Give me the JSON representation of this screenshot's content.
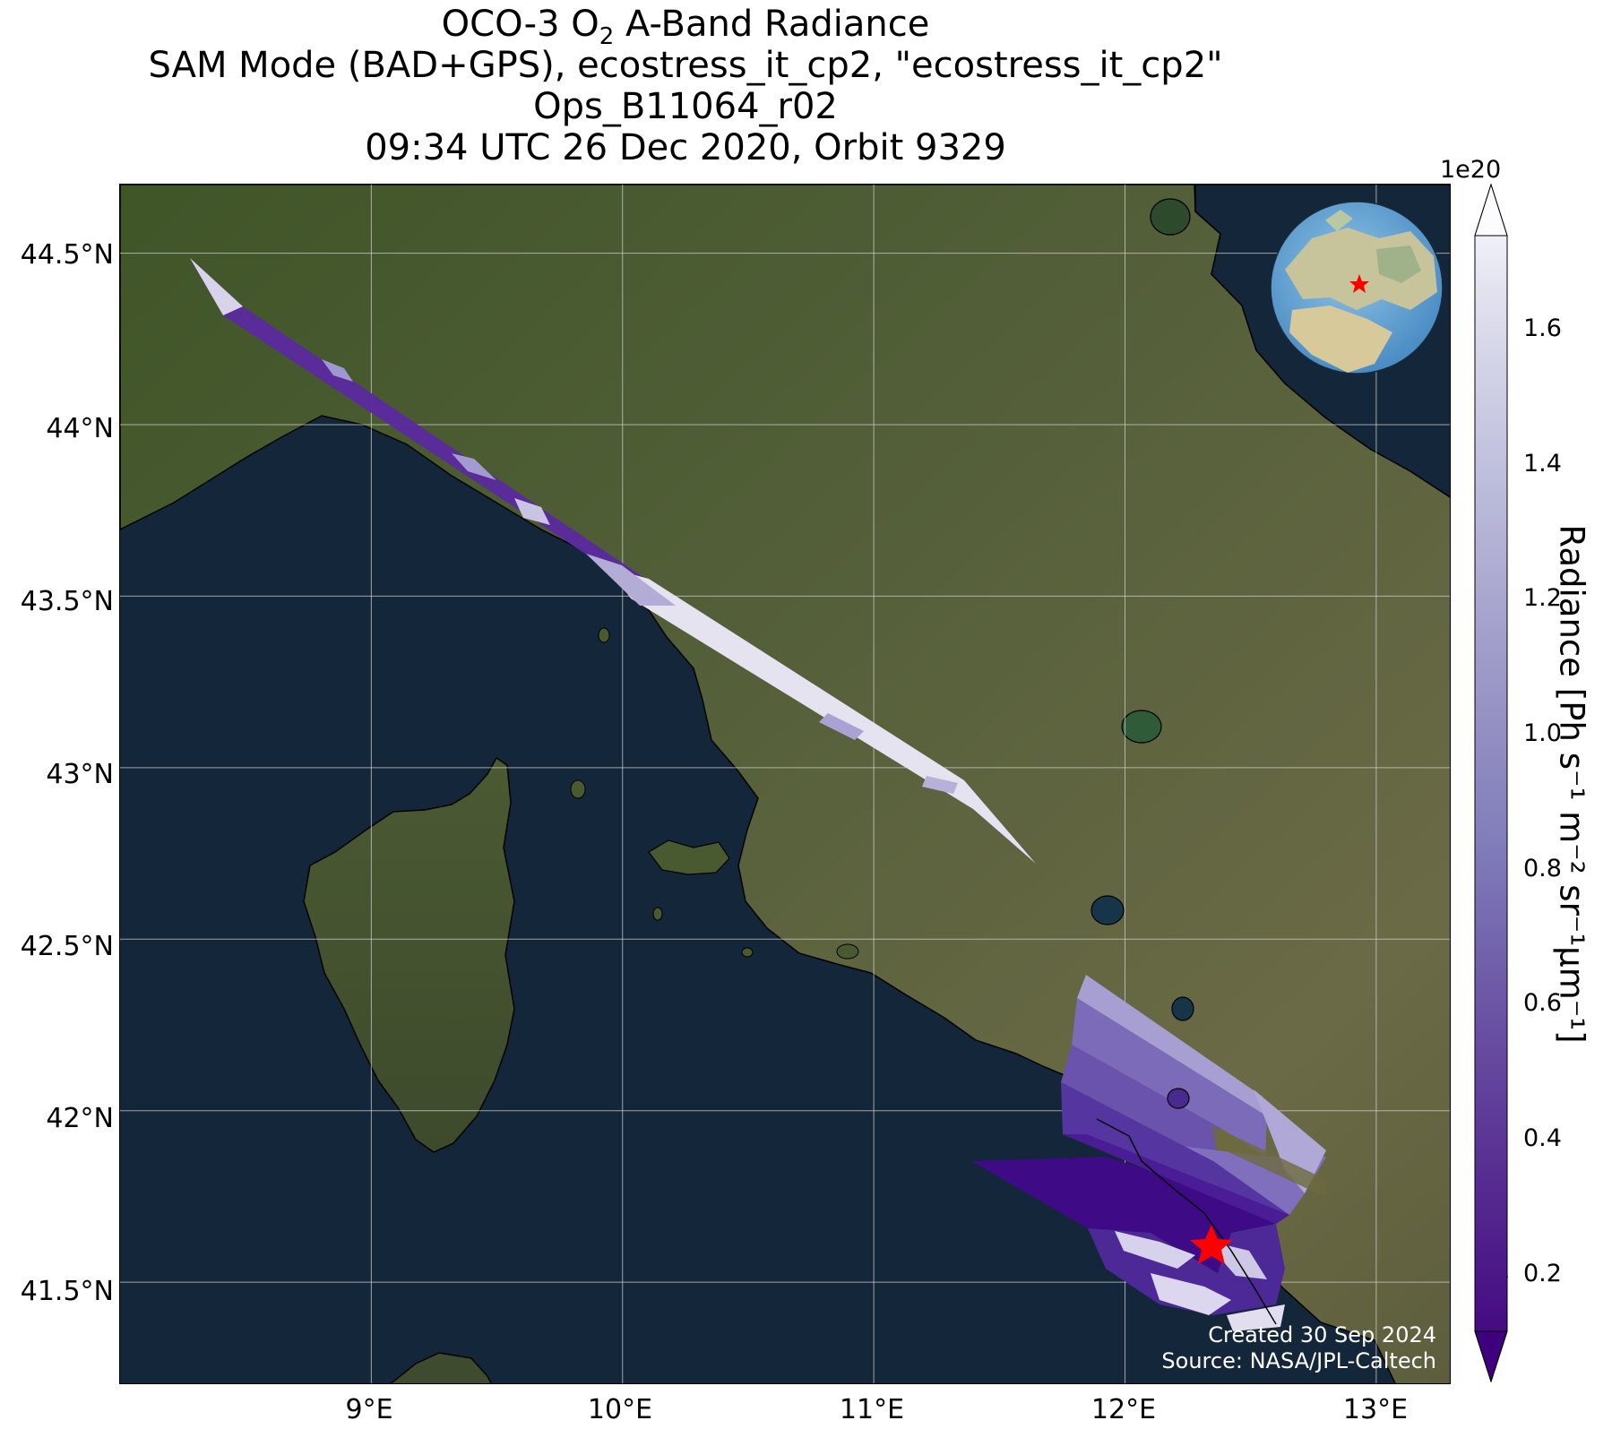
{
  "title": {
    "line1_pre": "OCO-3 O",
    "line1_sub": "2",
    "line1_post": " A-Band Radiance",
    "line2": "SAM Mode (BAD+GPS), ecostress_it_cp2, \"ecostress_it_cp2\"",
    "line3": "Ops_B11064_r02",
    "line4": "09:34 UTC 26 Dec 2020, Orbit 9329"
  },
  "axes": {
    "lon_ticks": [
      "9°E",
      "10°E",
      "11°E",
      "12°E",
      "13°E"
    ],
    "lat_ticks": [
      "44.5°N",
      "44°N",
      "43.5°N",
      "43°N",
      "42.5°N",
      "42°N",
      "41.5°N"
    ],
    "lon_values": [
      9,
      10,
      11,
      12,
      13
    ],
    "lat_values": [
      44.5,
      44,
      43.5,
      43,
      42.5,
      42,
      41.5
    ],
    "lon_range": [
      8,
      13.3
    ],
    "lat_range": [
      41.2,
      44.7
    ],
    "grid": true
  },
  "colorbar": {
    "label": "Radiance [Ph s⁻¹ m⁻² sr⁻¹μm⁻¹]",
    "exponent": "1e20",
    "ticks": [
      "0.2",
      "0.4",
      "0.6",
      "0.8",
      "1.0",
      "1.2",
      "1.4",
      "1.6"
    ],
    "tick_values": [
      0.2,
      0.4,
      0.6,
      0.8,
      1.0,
      1.2,
      1.4,
      1.6
    ],
    "range": [
      0.1,
      1.73
    ],
    "colormap": "Purples_r",
    "color_low": "#3f007d",
    "color_high": "#fcfbfd",
    "extend": "both"
  },
  "target_marker": {
    "lon": 12.36,
    "lat": 41.7,
    "color": "#ff0000",
    "shape": "star"
  },
  "inset_globe": {
    "icon": "globe-icon",
    "marker_color": "#ff0000"
  },
  "credit": {
    "line1": "Created 30 Sep 2024",
    "line2": "Source: NASA/JPL-Caltech"
  },
  "colors": {
    "sea": "#13263a",
    "land": "#4a5a2c",
    "grid": "#cfcfcf",
    "marker": "#ff0000"
  }
}
